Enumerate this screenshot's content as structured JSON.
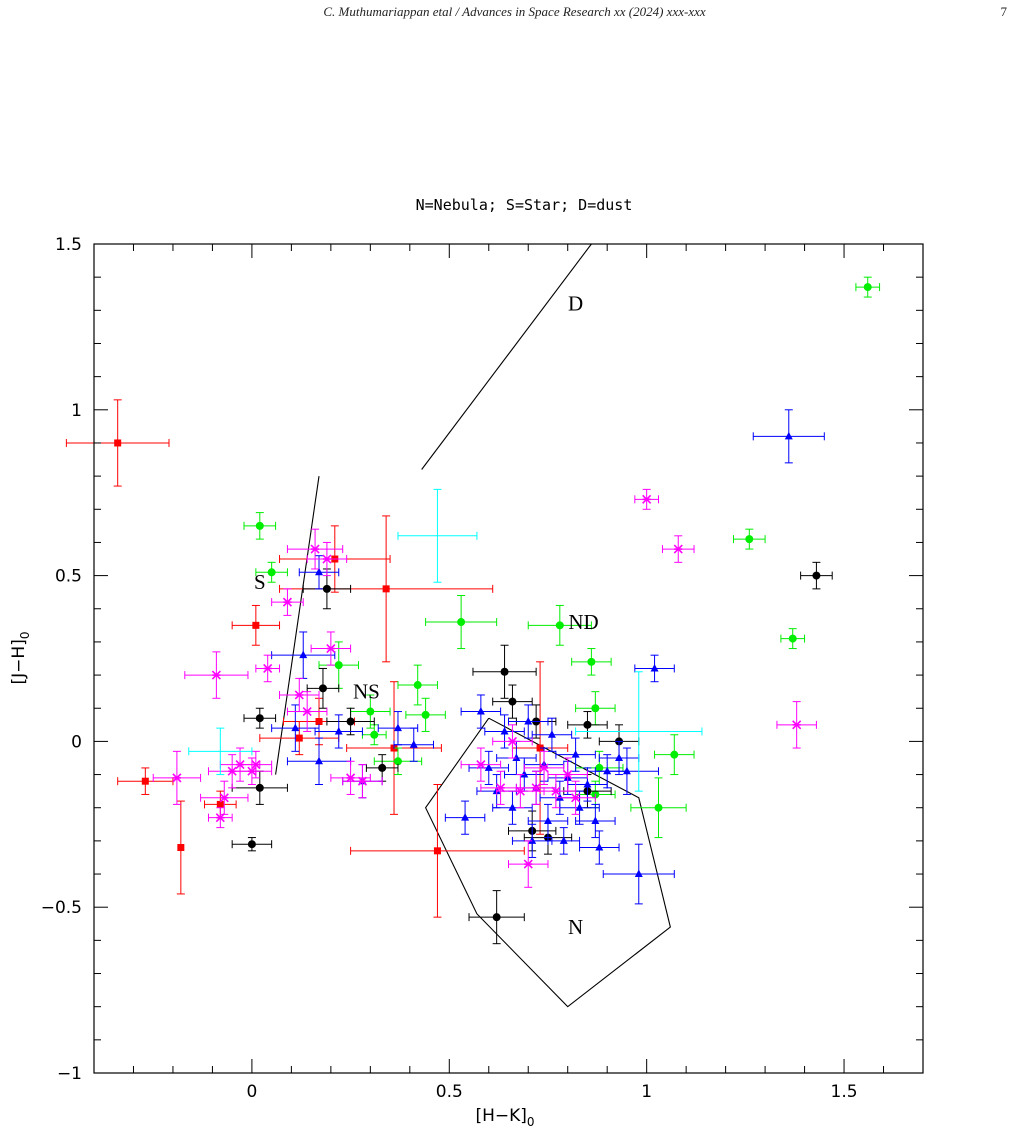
{
  "header": {
    "running_title": "C. Muthumariappan etal / Advances in Space Research xx (2024) xxx-xxx",
    "page_number": "7"
  },
  "chart_data": {
    "type": "scatter",
    "title": "N=Nebula; S=Star; D=dust",
    "xlabel": "[H−K]",
    "xlabel_sub": "0",
    "ylabel": "[J−H]",
    "ylabel_sub": "0",
    "xlim": [
      -0.4,
      1.7
    ],
    "ylim": [
      -1.0,
      1.5
    ],
    "xticks": [
      0,
      0.5,
      1,
      1.5
    ],
    "xtick_labels": [
      "0",
      "0.5",
      "1",
      "1.5"
    ],
    "yticks": [
      -1,
      -0.5,
      0,
      0.5,
      1,
      1.5
    ],
    "ytick_labels": [
      "−1",
      "−0.5",
      "0",
      "0.5",
      "1",
      "1.5"
    ],
    "grid": false,
    "region_labels": [
      {
        "text": "D",
        "x": 0.82,
        "y": 1.32
      },
      {
        "text": "S",
        "x": 0.02,
        "y": 0.48
      },
      {
        "text": "ND",
        "x": 0.84,
        "y": 0.36
      },
      {
        "text": "NS",
        "x": 0.29,
        "y": 0.15
      },
      {
        "text": "N",
        "x": 0.82,
        "y": -0.56
      }
    ],
    "region_lines": [
      {
        "name": "dust-boundary-line",
        "points": [
          [
            0.43,
            0.82
          ],
          [
            0.86,
            1.5
          ]
        ]
      },
      {
        "name": "star-boundary-line",
        "points": [
          [
            0.06,
            -0.1
          ],
          [
            0.17,
            0.8
          ]
        ]
      },
      {
        "name": "nebula-region-boundary",
        "points": [
          [
            0.6,
            0.07
          ],
          [
            0.98,
            -0.17
          ],
          [
            1.06,
            -0.56
          ],
          [
            0.8,
            -0.8
          ],
          [
            0.57,
            -0.52
          ],
          [
            0.44,
            -0.2
          ],
          [
            0.6,
            0.07
          ]
        ]
      }
    ],
    "series": [
      {
        "color": "#ff0000",
        "marker": "square",
        "points": [
          {
            "x": -0.34,
            "y": 0.9,
            "xerr": 0.13,
            "yerr": 0.13
          },
          {
            "x": -0.27,
            "y": -0.12,
            "xerr": 0.07,
            "yerr": 0.04
          },
          {
            "x": -0.18,
            "y": -0.32,
            "xerr": 0.0,
            "yerr": 0.14
          },
          {
            "x": -0.08,
            "y": -0.19,
            "xerr": 0.04,
            "yerr": 0.04
          },
          {
            "x": 0.01,
            "y": 0.35,
            "xerr": 0.06,
            "yerr": 0.06
          },
          {
            "x": 0.12,
            "y": 0.01,
            "xerr": 0.1,
            "yerr": 0.05
          },
          {
            "x": 0.17,
            "y": 0.06,
            "xerr": 0.09,
            "yerr": 0.07
          },
          {
            "x": 0.21,
            "y": 0.55,
            "xerr": 0.14,
            "yerr": 0.1
          },
          {
            "x": 0.34,
            "y": 0.46,
            "xerr": 0.27,
            "yerr": 0.22
          },
          {
            "x": 0.36,
            "y": -0.02,
            "xerr": 0.12,
            "yerr": 0.2
          },
          {
            "x": 0.47,
            "y": -0.33,
            "xerr": 0.22,
            "yerr": 0.2
          },
          {
            "x": 0.73,
            "y": -0.02,
            "xerr": 0.07,
            "yerr": 0.26
          }
        ]
      },
      {
        "color": "#00ee00",
        "marker": "circle",
        "points": [
          {
            "x": 0.02,
            "y": 0.65,
            "xerr": 0.04,
            "yerr": 0.04
          },
          {
            "x": 0.05,
            "y": 0.51,
            "xerr": 0.04,
            "yerr": 0.03
          },
          {
            "x": 0.22,
            "y": 0.23,
            "xerr": 0.05,
            "yerr": 0.07
          },
          {
            "x": 0.3,
            "y": 0.09,
            "xerr": 0.05,
            "yerr": 0.05
          },
          {
            "x": 0.31,
            "y": 0.02,
            "xerr": 0.03,
            "yerr": 0.03
          },
          {
            "x": 0.37,
            "y": -0.06,
            "xerr": 0.06,
            "yerr": 0.04
          },
          {
            "x": 0.42,
            "y": 0.17,
            "xerr": 0.05,
            "yerr": 0.06
          },
          {
            "x": 0.44,
            "y": 0.08,
            "xerr": 0.05,
            "yerr": 0.05
          },
          {
            "x": 0.53,
            "y": 0.36,
            "xerr": 0.09,
            "yerr": 0.08
          },
          {
            "x": 0.78,
            "y": 0.35,
            "xerr": 0.08,
            "yerr": 0.06
          },
          {
            "x": 0.86,
            "y": 0.24,
            "xerr": 0.05,
            "yerr": 0.04
          },
          {
            "x": 0.87,
            "y": 0.1,
            "xerr": 0.05,
            "yerr": 0.05
          },
          {
            "x": 0.88,
            "y": -0.08,
            "xerr": 0.06,
            "yerr": 0.05
          },
          {
            "x": 0.87,
            "y": -0.16,
            "xerr": 0.05,
            "yerr": 0.04
          },
          {
            "x": 1.03,
            "y": -0.2,
            "xerr": 0.07,
            "yerr": 0.09
          },
          {
            "x": 1.07,
            "y": -0.04,
            "xerr": 0.05,
            "yerr": 0.06
          },
          {
            "x": 1.26,
            "y": 0.61,
            "xerr": 0.04,
            "yerr": 0.03
          },
          {
            "x": 1.37,
            "y": 0.31,
            "xerr": 0.03,
            "yerr": 0.03
          },
          {
            "x": 1.56,
            "y": 1.37,
            "xerr": 0.03,
            "yerr": 0.03
          }
        ]
      },
      {
        "color": "#000000",
        "marker": "circle",
        "points": [
          {
            "x": 0.0,
            "y": -0.31,
            "xerr": 0.05,
            "yerr": 0.02
          },
          {
            "x": 0.02,
            "y": -0.14,
            "xerr": 0.07,
            "yerr": 0.05
          },
          {
            "x": 0.02,
            "y": 0.07,
            "xerr": 0.04,
            "yerr": 0.03
          },
          {
            "x": 0.18,
            "y": 0.16,
            "xerr": 0.04,
            "yerr": 0.06
          },
          {
            "x": 0.19,
            "y": 0.46,
            "xerr": 0.06,
            "yerr": 0.06
          },
          {
            "x": 0.25,
            "y": 0.06,
            "xerr": 0.06,
            "yerr": 0.04
          },
          {
            "x": 0.33,
            "y": -0.08,
            "xerr": 0.04,
            "yerr": 0.04
          },
          {
            "x": 0.64,
            "y": 0.21,
            "xerr": 0.08,
            "yerr": 0.08
          },
          {
            "x": 0.66,
            "y": 0.12,
            "xerr": 0.05,
            "yerr": 0.05
          },
          {
            "x": 0.62,
            "y": -0.53,
            "xerr": 0.07,
            "yerr": 0.08
          },
          {
            "x": 0.71,
            "y": -0.27,
            "xerr": 0.06,
            "yerr": 0.06
          },
          {
            "x": 0.75,
            "y": -0.29,
            "xerr": 0.06,
            "yerr": 0.05
          },
          {
            "x": 0.72,
            "y": 0.06,
            "xerr": 0.05,
            "yerr": 0.05
          },
          {
            "x": 0.85,
            "y": 0.05,
            "xerr": 0.05,
            "yerr": 0.04
          },
          {
            "x": 0.85,
            "y": -0.15,
            "xerr": 0.06,
            "yerr": 0.05
          },
          {
            "x": 0.93,
            "y": 0.0,
            "xerr": 0.05,
            "yerr": 0.05
          },
          {
            "x": 1.43,
            "y": 0.5,
            "xerr": 0.04,
            "yerr": 0.04
          }
        ]
      },
      {
        "color": "#0000ff",
        "marker": "triangle",
        "points": [
          {
            "x": 0.11,
            "y": 0.04,
            "xerr": 0.06,
            "yerr": 0.07
          },
          {
            "x": 0.13,
            "y": 0.26,
            "xerr": 0.08,
            "yerr": 0.07
          },
          {
            "x": 0.17,
            "y": -0.06,
            "xerr": 0.08,
            "yerr": 0.07
          },
          {
            "x": 0.17,
            "y": 0.51,
            "xerr": 0.05,
            "yerr": 0.05
          },
          {
            "x": 0.22,
            "y": 0.03,
            "xerr": 0.06,
            "yerr": 0.05
          },
          {
            "x": 0.28,
            "y": -0.12,
            "xerr": 0.05,
            "yerr": 0.05
          },
          {
            "x": 0.37,
            "y": 0.04,
            "xerr": 0.05,
            "yerr": 0.05
          },
          {
            "x": 0.41,
            "y": -0.01,
            "xerr": 0.05,
            "yerr": 0.05
          },
          {
            "x": 0.54,
            "y": -0.23,
            "xerr": 0.05,
            "yerr": 0.05
          },
          {
            "x": 0.58,
            "y": 0.09,
            "xerr": 0.05,
            "yerr": 0.05
          },
          {
            "x": 0.6,
            "y": -0.08,
            "xerr": 0.05,
            "yerr": 0.05
          },
          {
            "x": 0.62,
            "y": -0.15,
            "xerr": 0.05,
            "yerr": 0.05
          },
          {
            "x": 0.64,
            "y": 0.03,
            "xerr": 0.05,
            "yerr": 0.05
          },
          {
            "x": 0.66,
            "y": -0.2,
            "xerr": 0.05,
            "yerr": 0.05
          },
          {
            "x": 0.67,
            "y": -0.05,
            "xerr": 0.05,
            "yerr": 0.05
          },
          {
            "x": 0.69,
            "y": -0.1,
            "xerr": 0.05,
            "yerr": 0.05
          },
          {
            "x": 0.7,
            "y": 0.06,
            "xerr": 0.05,
            "yerr": 0.05
          },
          {
            "x": 0.71,
            "y": -0.3,
            "xerr": 0.05,
            "yerr": 0.05
          },
          {
            "x": 0.72,
            "y": -0.14,
            "xerr": 0.05,
            "yerr": 0.05
          },
          {
            "x": 0.74,
            "y": -0.07,
            "xerr": 0.05,
            "yerr": 0.05
          },
          {
            "x": 0.75,
            "y": -0.24,
            "xerr": 0.05,
            "yerr": 0.05
          },
          {
            "x": 0.76,
            "y": 0.02,
            "xerr": 0.05,
            "yerr": 0.05
          },
          {
            "x": 0.78,
            "y": -0.17,
            "xerr": 0.05,
            "yerr": 0.05
          },
          {
            "x": 0.79,
            "y": -0.3,
            "xerr": 0.04,
            "yerr": 0.04
          },
          {
            "x": 0.8,
            "y": -0.11,
            "xerr": 0.05,
            "yerr": 0.05
          },
          {
            "x": 0.82,
            "y": -0.04,
            "xerr": 0.05,
            "yerr": 0.05
          },
          {
            "x": 0.83,
            "y": -0.2,
            "xerr": 0.05,
            "yerr": 0.05
          },
          {
            "x": 0.85,
            "y": -0.13,
            "xerr": 0.05,
            "yerr": 0.05
          },
          {
            "x": 0.87,
            "y": -0.24,
            "xerr": 0.05,
            "yerr": 0.05
          },
          {
            "x": 0.88,
            "y": -0.32,
            "xerr": 0.05,
            "yerr": 0.05
          },
          {
            "x": 0.9,
            "y": -0.09,
            "xerr": 0.05,
            "yerr": 0.05
          },
          {
            "x": 0.93,
            "y": -0.05,
            "xerr": 0.05,
            "yerr": 0.05
          },
          {
            "x": 0.95,
            "y": -0.09,
            "xerr": 0.08,
            "yerr": 0.07
          },
          {
            "x": 0.98,
            "y": -0.4,
            "xerr": 0.09,
            "yerr": 0.09
          },
          {
            "x": 1.02,
            "y": 0.22,
            "xerr": 0.05,
            "yerr": 0.04
          },
          {
            "x": 1.36,
            "y": 0.92,
            "xerr": 0.09,
            "yerr": 0.08
          }
        ]
      },
      {
        "color": "#ff00ff",
        "marker": "star",
        "points": [
          {
            "x": -0.19,
            "y": -0.11,
            "xerr": 0.06,
            "yerr": 0.08
          },
          {
            "x": -0.09,
            "y": 0.2,
            "xerr": 0.08,
            "yerr": 0.07
          },
          {
            "x": -0.08,
            "y": -0.23,
            "xerr": 0.03,
            "yerr": 0.03
          },
          {
            "x": -0.07,
            "y": -0.17,
            "xerr": 0.06,
            "yerr": 0.05
          },
          {
            "x": -0.05,
            "y": -0.09,
            "xerr": 0.06,
            "yerr": 0.05
          },
          {
            "x": -0.03,
            "y": -0.07,
            "xerr": 0.05,
            "yerr": 0.05
          },
          {
            "x": 0.0,
            "y": -0.09,
            "xerr": 0.05,
            "yerr": 0.04
          },
          {
            "x": 0.01,
            "y": -0.07,
            "xerr": 0.04,
            "yerr": 0.04
          },
          {
            "x": 0.04,
            "y": 0.22,
            "xerr": 0.03,
            "yerr": 0.04
          },
          {
            "x": 0.09,
            "y": 0.42,
            "xerr": 0.04,
            "yerr": 0.04
          },
          {
            "x": 0.12,
            "y": 0.14,
            "xerr": 0.05,
            "yerr": 0.05
          },
          {
            "x": 0.14,
            "y": 0.09,
            "xerr": 0.05,
            "yerr": 0.06
          },
          {
            "x": 0.16,
            "y": 0.58,
            "xerr": 0.07,
            "yerr": 0.06
          },
          {
            "x": 0.19,
            "y": 0.55,
            "xerr": 0.05,
            "yerr": 0.05
          },
          {
            "x": 0.2,
            "y": 0.28,
            "xerr": 0.05,
            "yerr": 0.05
          },
          {
            "x": 0.25,
            "y": -0.11,
            "xerr": 0.05,
            "yerr": 0.05
          },
          {
            "x": 0.28,
            "y": -0.12,
            "xerr": 0.05,
            "yerr": 0.05
          },
          {
            "x": 0.58,
            "y": -0.07,
            "xerr": 0.05,
            "yerr": 0.05
          },
          {
            "x": 0.63,
            "y": -0.14,
            "xerr": 0.05,
            "yerr": 0.05
          },
          {
            "x": 0.66,
            "y": 0.0,
            "xerr": 0.05,
            "yerr": 0.05
          },
          {
            "x": 0.68,
            "y": -0.15,
            "xerr": 0.06,
            "yerr": 0.05
          },
          {
            "x": 0.7,
            "y": -0.37,
            "xerr": 0.05,
            "yerr": 0.07
          },
          {
            "x": 0.72,
            "y": -0.14,
            "xerr": 0.05,
            "yerr": 0.05
          },
          {
            "x": 0.74,
            "y": -0.08,
            "xerr": 0.05,
            "yerr": 0.05
          },
          {
            "x": 0.77,
            "y": -0.15,
            "xerr": 0.05,
            "yerr": 0.05
          },
          {
            "x": 0.8,
            "y": -0.1,
            "xerr": 0.05,
            "yerr": 0.05
          },
          {
            "x": 0.82,
            "y": -0.17,
            "xerr": 0.05,
            "yerr": 0.05
          },
          {
            "x": 1.0,
            "y": 0.73,
            "xerr": 0.03,
            "yerr": 0.03
          },
          {
            "x": 1.08,
            "y": 0.58,
            "xerr": 0.04,
            "yerr": 0.04
          },
          {
            "x": 1.38,
            "y": 0.05,
            "xerr": 0.05,
            "yerr": 0.07
          }
        ]
      },
      {
        "color": "#00ffff",
        "marker": "none",
        "points": [
          {
            "x": 0.47,
            "y": 0.62,
            "xerr": 0.1,
            "yerr": 0.14
          },
          {
            "x": -0.08,
            "y": -0.03,
            "xerr": 0.08,
            "yerr": 0.07
          },
          {
            "x": 0.98,
            "y": 0.03,
            "xerr": 0.16,
            "yerr": 0.18
          }
        ]
      }
    ]
  }
}
